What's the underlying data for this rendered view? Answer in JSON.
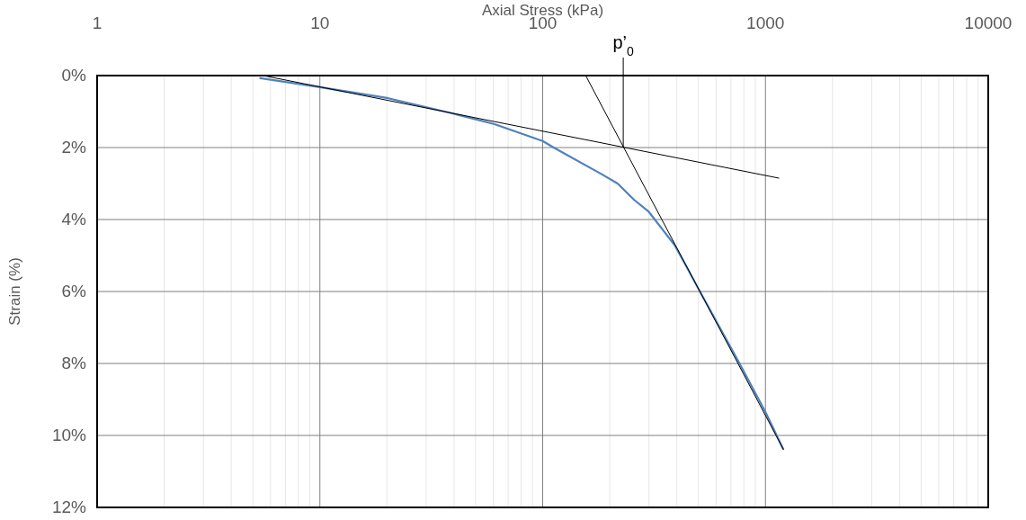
{
  "chart_data": {
    "type": "line",
    "xlabel": "Axial Stress (kPa)",
    "ylabel": "Strain (%)",
    "log": "x",
    "grid": true,
    "marker": "none",
    "line_style": "solid",
    "xlim": [
      1,
      10000
    ],
    "xticks": [
      1,
      10,
      100,
      1000,
      10000
    ],
    "ylim": [
      12,
      0
    ],
    "yticks": [
      {
        "value": 0,
        "label": "0%"
      },
      {
        "value": 2,
        "label": "2%"
      },
      {
        "value": 4,
        "label": "4%"
      },
      {
        "value": 6,
        "label": "6%"
      },
      {
        "value": 8,
        "label": "8%"
      },
      {
        "value": 10,
        "label": "10%"
      },
      {
        "value": 12,
        "label": "12%"
      }
    ],
    "series": [
      {
        "color": "#4f81bd",
        "x": [
          5.4,
          10,
          20.3,
          38.2,
          60.8,
          100,
          112,
          184,
          217,
          257,
          298,
          390,
          428,
          506,
          762,
          1000,
          1202
        ],
        "values": [
          0.07,
          0.32,
          0.63,
          1.03,
          1.35,
          1.82,
          2.0,
          2.74,
          3.0,
          3.45,
          3.77,
          4.7,
          5.15,
          5.98,
          7.98,
          9.35,
          10.38
        ]
      },
      {
        "color": "#000000",
        "x": [
          5.56,
          1148
        ],
        "values": [
          0,
          2.85
        ]
      },
      {
        "color": "#000000",
        "x": [
          156,
          1202
        ],
        "values": [
          0,
          10.38
        ]
      }
    ],
    "ref_lines": [
      {
        "axis": "x",
        "value": 230,
        "label": "p’$_{0}$",
        "color": "#000000"
      }
    ]
  }
}
